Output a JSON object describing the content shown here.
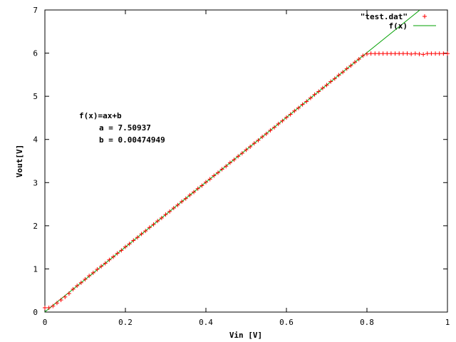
{
  "chart_data": {
    "type": "scatter",
    "xlabel": "Vin [V]",
    "ylabel": "Vout[V]",
    "xlim": [
      0,
      1
    ],
    "ylim": [
      0,
      7
    ],
    "x_ticks": [
      "0",
      "0.2",
      "0.4",
      "0.6",
      "0.8",
      "1"
    ],
    "y_ticks": [
      "0",
      "1",
      "2",
      "3",
      "4",
      "5",
      "6",
      "7"
    ],
    "grid": false,
    "legend_position": "top-right",
    "legend": [
      {
        "label": "\"test.dat\"",
        "marker": "+",
        "color": "#ff0000"
      },
      {
        "label": "f(x)",
        "marker": "line",
        "color": "#00a000"
      }
    ],
    "annotation": {
      "formula": "f(x)=ax+b",
      "a_text": "a = 7.50937",
      "b_text": "b = 0.00474949"
    },
    "fit": {
      "name": "f(x)",
      "a": 7.50937,
      "b": 0.00474949,
      "color": "#00a000"
    },
    "series": [
      {
        "name": "\"test.dat\"",
        "color": "#ff0000",
        "marker": "+",
        "points": [
          [
            0.0,
            0.1
          ],
          [
            0.01,
            0.1
          ],
          [
            0.02,
            0.14
          ],
          [
            0.03,
            0.21
          ],
          [
            0.04,
            0.28
          ],
          [
            0.05,
            0.35
          ],
          [
            0.06,
            0.43
          ],
          [
            0.07,
            0.53
          ],
          [
            0.08,
            0.61
          ],
          [
            0.09,
            0.68
          ],
          [
            0.1,
            0.76
          ],
          [
            0.11,
            0.84
          ],
          [
            0.12,
            0.91
          ],
          [
            0.13,
            0.99
          ],
          [
            0.14,
            1.06
          ],
          [
            0.15,
            1.13
          ],
          [
            0.16,
            1.21
          ],
          [
            0.17,
            1.28
          ],
          [
            0.18,
            1.36
          ],
          [
            0.19,
            1.43
          ],
          [
            0.2,
            1.51
          ],
          [
            0.21,
            1.58
          ],
          [
            0.22,
            1.66
          ],
          [
            0.23,
            1.73
          ],
          [
            0.24,
            1.81
          ],
          [
            0.25,
            1.88
          ],
          [
            0.26,
            1.96
          ],
          [
            0.27,
            2.03
          ],
          [
            0.28,
            2.11
          ],
          [
            0.29,
            2.18
          ],
          [
            0.3,
            2.26
          ],
          [
            0.31,
            2.33
          ],
          [
            0.32,
            2.41
          ],
          [
            0.33,
            2.48
          ],
          [
            0.34,
            2.56
          ],
          [
            0.35,
            2.63
          ],
          [
            0.36,
            2.71
          ],
          [
            0.37,
            2.78
          ],
          [
            0.38,
            2.86
          ],
          [
            0.39,
            2.93
          ],
          [
            0.4,
            3.01
          ],
          [
            0.41,
            3.08
          ],
          [
            0.42,
            3.16
          ],
          [
            0.43,
            3.23
          ],
          [
            0.44,
            3.31
          ],
          [
            0.45,
            3.38
          ],
          [
            0.46,
            3.46
          ],
          [
            0.47,
            3.53
          ],
          [
            0.48,
            3.61
          ],
          [
            0.49,
            3.68
          ],
          [
            0.5,
            3.76
          ],
          [
            0.51,
            3.83
          ],
          [
            0.52,
            3.91
          ],
          [
            0.53,
            3.98
          ],
          [
            0.54,
            4.06
          ],
          [
            0.55,
            4.13
          ],
          [
            0.56,
            4.21
          ],
          [
            0.57,
            4.28
          ],
          [
            0.58,
            4.36
          ],
          [
            0.59,
            4.43
          ],
          [
            0.6,
            4.51
          ],
          [
            0.61,
            4.58
          ],
          [
            0.62,
            4.66
          ],
          [
            0.63,
            4.73
          ],
          [
            0.64,
            4.81
          ],
          [
            0.65,
            4.88
          ],
          [
            0.66,
            4.96
          ],
          [
            0.67,
            5.04
          ],
          [
            0.68,
            5.11
          ],
          [
            0.69,
            5.19
          ],
          [
            0.7,
            5.26
          ],
          [
            0.71,
            5.34
          ],
          [
            0.72,
            5.41
          ],
          [
            0.73,
            5.49
          ],
          [
            0.74,
            5.56
          ],
          [
            0.75,
            5.64
          ],
          [
            0.76,
            5.71
          ],
          [
            0.77,
            5.79
          ],
          [
            0.78,
            5.86
          ],
          [
            0.79,
            5.94
          ],
          [
            0.8,
            5.98
          ],
          [
            0.81,
            5.99
          ],
          [
            0.82,
            5.99
          ],
          [
            0.83,
            5.99
          ],
          [
            0.84,
            5.99
          ],
          [
            0.85,
            5.99
          ],
          [
            0.86,
            5.99
          ],
          [
            0.87,
            5.99
          ],
          [
            0.88,
            5.99
          ],
          [
            0.89,
            5.99
          ],
          [
            0.9,
            5.99
          ],
          [
            0.91,
            5.98
          ],
          [
            0.92,
            5.99
          ],
          [
            0.93,
            5.98
          ],
          [
            0.94,
            5.97
          ],
          [
            0.95,
            5.99
          ],
          [
            0.96,
            5.99
          ],
          [
            0.97,
            5.99
          ],
          [
            0.98,
            5.99
          ],
          [
            0.99,
            5.99
          ],
          [
            1.0,
            5.99
          ]
        ]
      }
    ]
  }
}
